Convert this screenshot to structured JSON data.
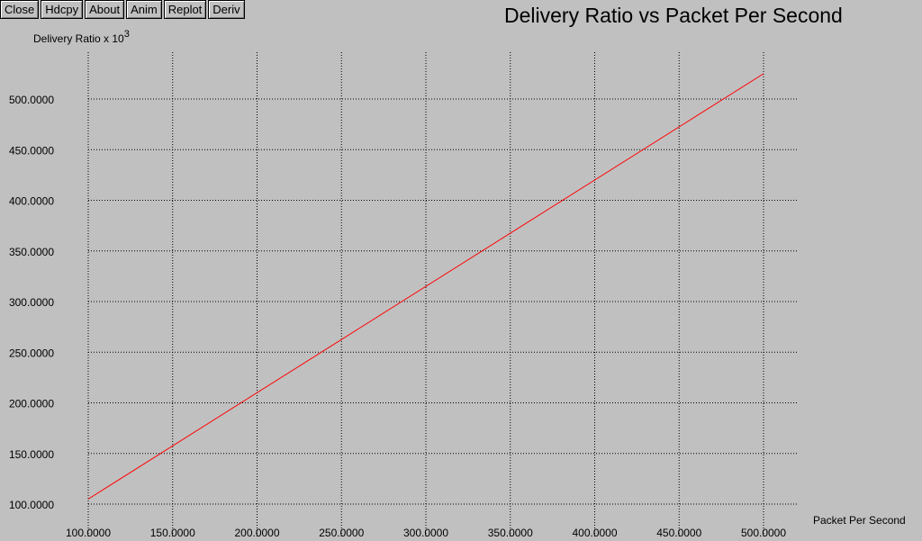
{
  "toolbar": {
    "buttons": [
      {
        "id": "close",
        "label": "Close"
      },
      {
        "id": "hdcpy",
        "label": "Hdcpy"
      },
      {
        "id": "about",
        "label": "About"
      },
      {
        "id": "anim",
        "label": "Anim"
      },
      {
        "id": "replot",
        "label": "Replot"
      },
      {
        "id": "deriv",
        "label": "Deriv"
      }
    ]
  },
  "chart_data": {
    "type": "line",
    "title": "Delivery Ratio vs Packet Per Second",
    "ylabel_text": "Delivery Ratio x 10",
    "ylabel_exponent": "3",
    "xlabel": "Packet Per Second",
    "xlim": [
      100,
      500
    ],
    "ylim": [
      100,
      500
    ],
    "x_ticks": [
      100,
      150,
      200,
      250,
      300,
      350,
      400,
      450,
      500
    ],
    "y_ticks": [
      100,
      150,
      200,
      250,
      300,
      350,
      400,
      450,
      500
    ],
    "x_tick_labels": [
      "100.0000",
      "150.0000",
      "200.0000",
      "250.0000",
      "300.0000",
      "350.0000",
      "400.0000",
      "450.0000",
      "500.0000"
    ],
    "y_tick_labels": [
      "100.0000",
      "150.0000",
      "200.0000",
      "250.0000",
      "300.0000",
      "350.0000",
      "400.0000",
      "450.0000",
      "500.0000"
    ],
    "grid": true,
    "series": [
      {
        "color": "#ff0000",
        "x": [
          100,
          500
        ],
        "y": [
          105,
          525
        ]
      }
    ]
  }
}
